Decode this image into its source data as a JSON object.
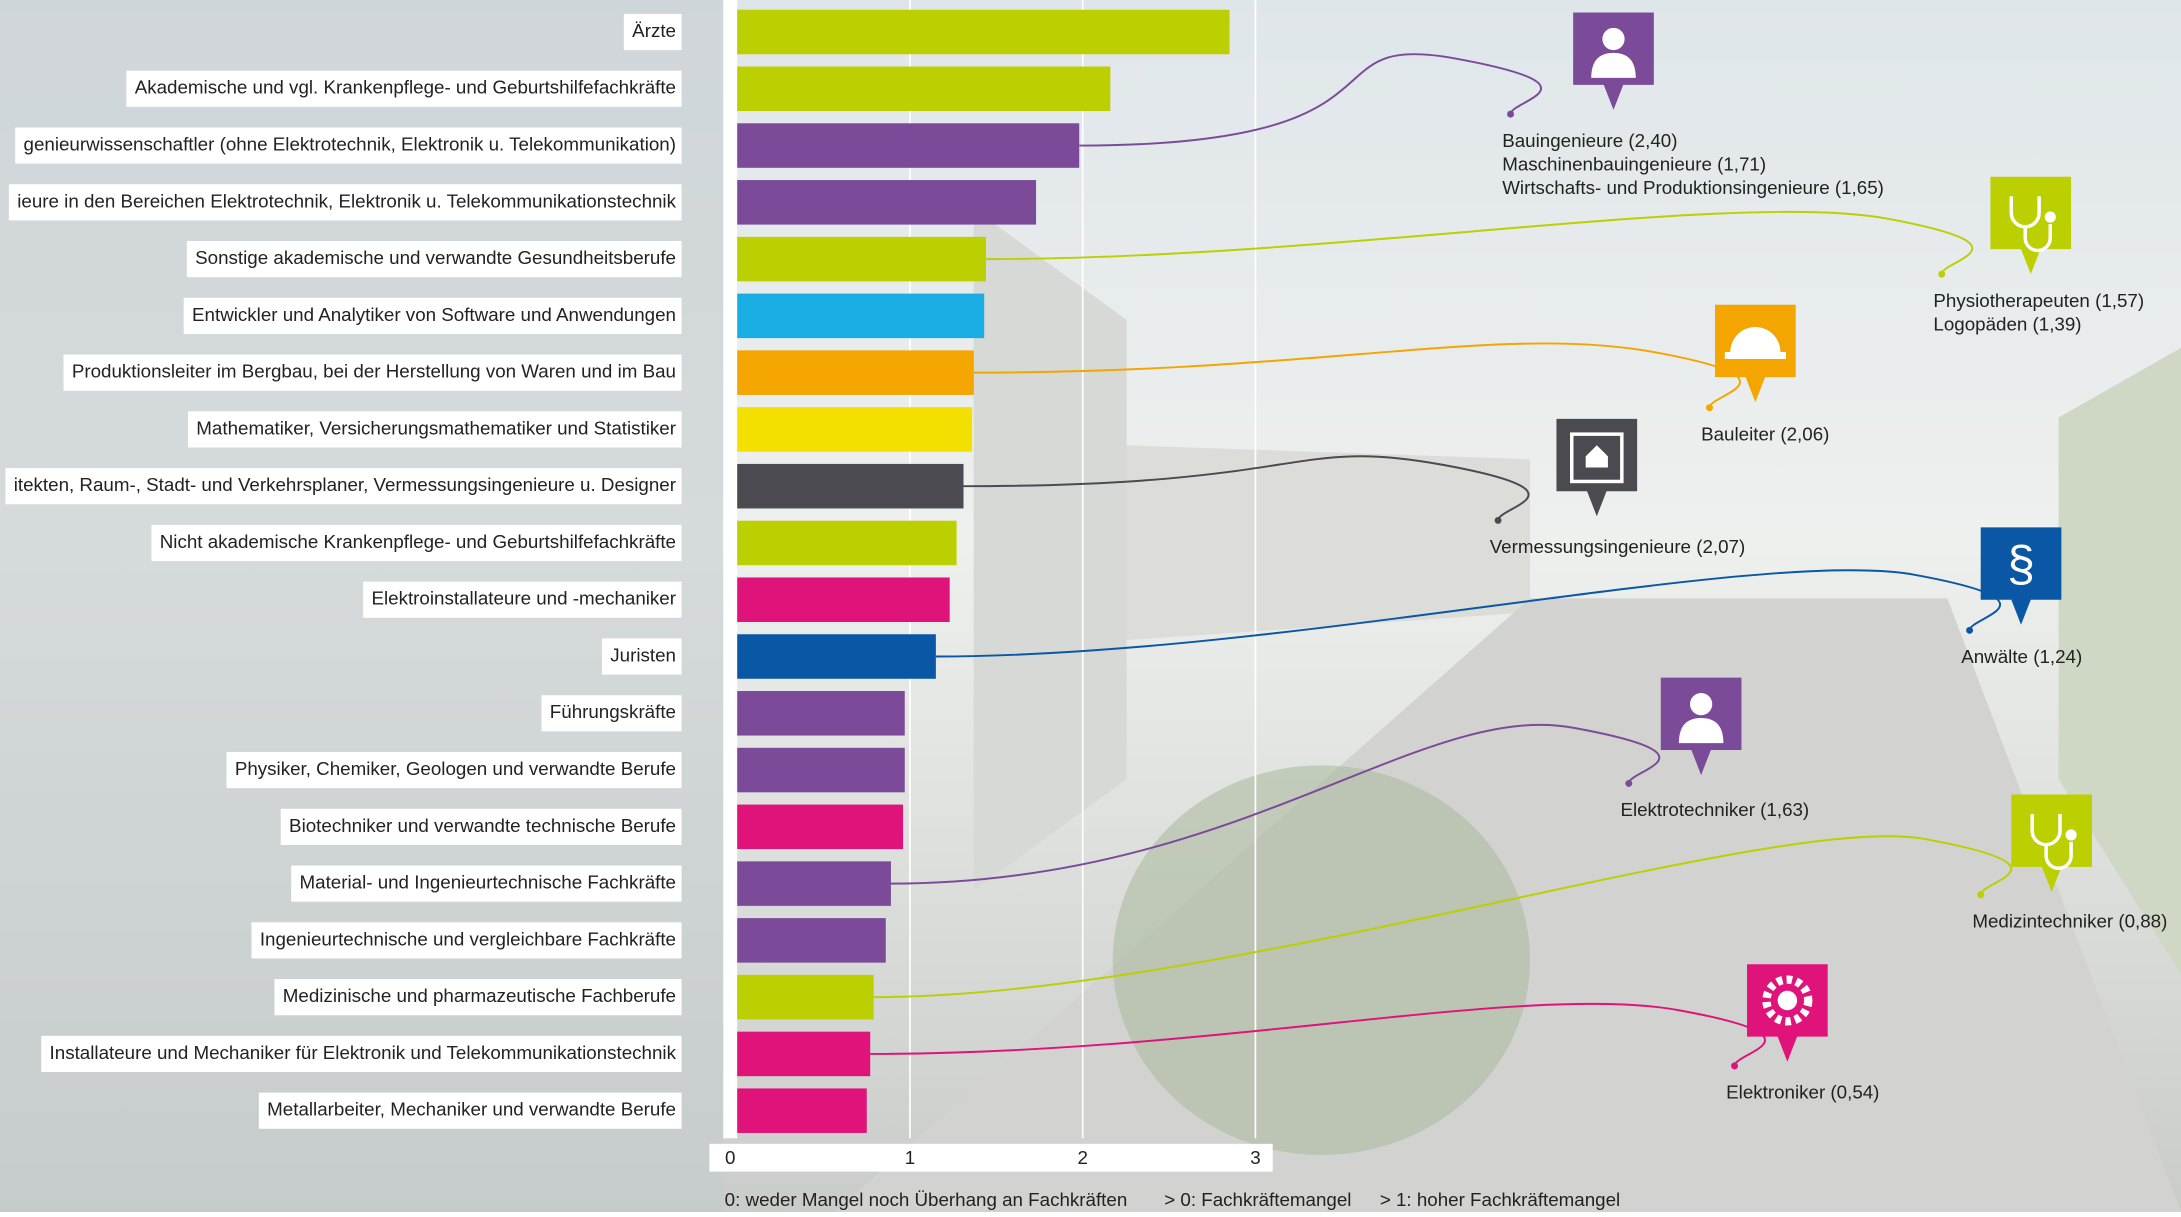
{
  "chart_data": {
    "type": "bar",
    "orientation": "horizontal",
    "categories": [
      "Ärzte",
      "Akademische und vgl. Krankenpflege- und Geburtshilfefachkräfte",
      "genieurwissenschaftler (ohne Elektrotechnik, Elektronik u. Telekommunikation)",
      "ieure in den Bereichen Elektrotechnik, Elektronik u. Telekommunikationstechnik",
      "Sonstige akademische und verwandte Gesundheitsberufe",
      "Entwickler und Analytiker von Software und Anwendungen",
      "Produktionsleiter im Bergbau, bei der Herstellung von Waren und im Bau",
      "Mathematiker, Versicherungsmathematiker und Statistiker",
      "itekten, Raum-, Stadt- und Verkehrsplaner, Vermessungsingenieure u. Designer",
      "Nicht akademische Krankenpflege- und Geburtshilfefachkräfte",
      "Elektroinstallateure und -mechaniker",
      "Juristen",
      "Führungskräfte",
      "Physiker, Chemiker, Geologen und verwandte Berufe",
      "Biotechniker und verwandte technische Berufe",
      "Material- und Ingenieurtechnische Fachkräfte",
      "Ingenieurtechnische und vergleichbare Fachkräfte",
      "Medizinische und pharmazeutische Fachberufe",
      "Installateure und Mechaniker für Elektronik und Telekommunikationstechnik",
      "Metallarbeiter, Mechaniker und verwandte Berufe"
    ],
    "values": [
      2.85,
      2.16,
      1.98,
      1.73,
      1.44,
      1.43,
      1.37,
      1.36,
      1.31,
      1.27,
      1.23,
      1.15,
      0.97,
      0.97,
      0.96,
      0.89,
      0.86,
      0.79,
      0.77,
      0.75
    ],
    "colors": [
      "#bccf00",
      "#bccf00",
      "#7b4b9a",
      "#7b4b9a",
      "#bccf00",
      "#19ade4",
      "#f4a500",
      "#f3df00",
      "#4a4a50",
      "#bccf00",
      "#df137a",
      "#0a58a5",
      "#7b4b9a",
      "#7b4b9a",
      "#df137a",
      "#7b4b9a",
      "#7b4b9a",
      "#bccf00",
      "#df137a",
      "#df137a"
    ],
    "xlim": [
      0,
      3.1
    ],
    "xticks": [
      0,
      1,
      2,
      3
    ],
    "grid": true,
    "notes": [
      "0: weder Mangel noch Überhang an Fachkräften",
      "> 0: Fachkräftemangel",
      "> 1: hoher Fachkräftemangel"
    ],
    "annotations": [
      {
        "lines": [
          "Bauingenieure (2,40)",
          "Maschinenbauingenieure (1,71)",
          "Wirtschafts- und Produktionsingenieure (1,65)"
        ],
        "color": "#7b4b9a"
      },
      {
        "lines": [
          "Physiotherapeuten (1,57)",
          "Logopäden (1,39)"
        ],
        "color": "#bccf00"
      },
      {
        "lines": [
          "Bauleiter (2,06)"
        ],
        "color": "#f4a500"
      },
      {
        "lines": [
          "Vermessungsingenieure (2,07)"
        ],
        "color": "#4a4a50"
      },
      {
        "lines": [
          "Anwälte (1,24)"
        ],
        "color": "#0a58a5"
      },
      {
        "lines": [
          "Elektrotechniker (1,63)"
        ],
        "color": "#7b4b9a"
      },
      {
        "lines": [
          "Medizintechniker (0,88)"
        ],
        "color": "#bccf00"
      },
      {
        "lines": [
          "Elektroniker (0,54)"
        ],
        "color": "#df137a"
      }
    ]
  }
}
